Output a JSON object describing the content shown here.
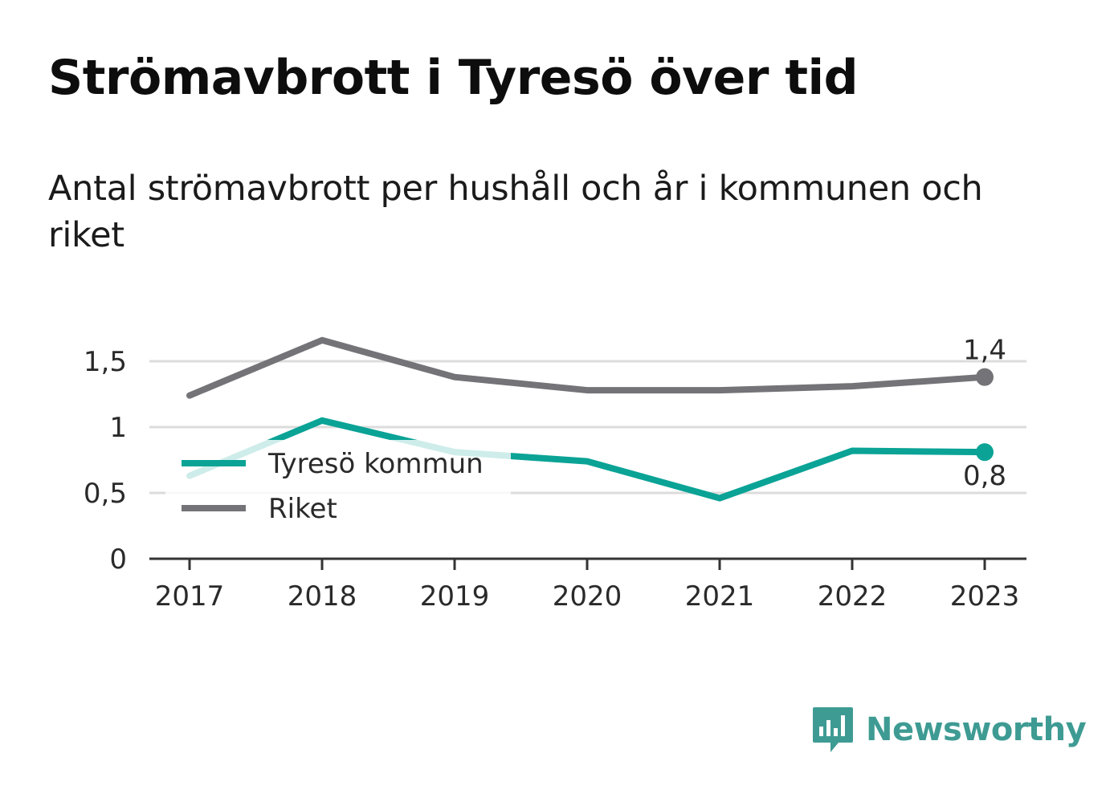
{
  "title": "Strömavbrott i Tyresö över tid",
  "subtitle": "Antal strömavbrott per hushåll och år i kommunen och riket",
  "brand": {
    "name": "Newsworthy",
    "icon": "bar-chart-speech-bubble-icon",
    "color": "#3e9b93"
  },
  "chart_data": {
    "type": "line",
    "x": [
      "2017",
      "2018",
      "2019",
      "2020",
      "2021",
      "2022",
      "2023"
    ],
    "ylim": [
      0,
      1.65
    ],
    "yticks": [
      0,
      0.5,
      1,
      1.5
    ],
    "ytick_labels": [
      "0",
      "0,5",
      "1",
      "1,5"
    ],
    "grid": true,
    "legend": "left",
    "series": [
      {
        "name": "Tyresö kommun",
        "color": "#0aa396",
        "values": [
          0.63,
          1.05,
          0.81,
          0.74,
          0.46,
          0.82,
          0.81
        ],
        "end_label": "0,8"
      },
      {
        "name": "Riket",
        "color": "#737378",
        "values": [
          1.24,
          1.66,
          1.38,
          1.28,
          1.28,
          1.31,
          1.38
        ],
        "end_label": "1,4"
      }
    ]
  }
}
